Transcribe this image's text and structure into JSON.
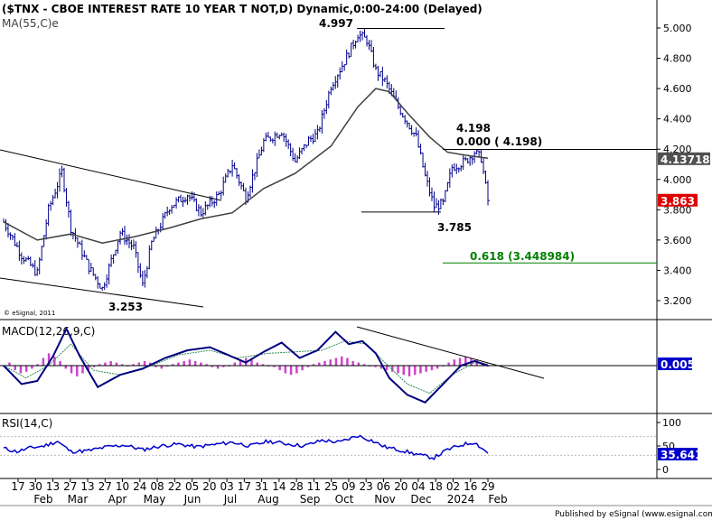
{
  "chart_data": [
    {
      "type": "ohlc-bar",
      "panel": "price",
      "title": "($TNX - CBOE INTEREST RATE 10 YEAR T NOT,D) Dynamic,0:00-24:00 (Delayed)",
      "indicator_label": "MA(55,C)e",
      "watermark": "© eSignal, 2011",
      "ylim": [
        3.1,
        5.1
      ],
      "yticks": [
        "5.000",
        "4.800",
        "4.600",
        "4.400",
        "4.200",
        "4.000",
        "3.800",
        "3.600",
        "3.400",
        "3.200"
      ],
      "last_price_label": "4.137182",
      "current_price_label": "3.863",
      "last_price": 4.137,
      "current_price": 3.863,
      "annotations": [
        {
          "text": "4.997",
          "value": 4.997
        },
        {
          "text": "3.253",
          "value": 3.253
        },
        {
          "text": "4.198",
          "value": 4.198
        },
        {
          "text": "0.000 ( 4.198)",
          "value": 4.198
        },
        {
          "text": "3.785",
          "value": 3.785
        },
        {
          "text": "0.618 (3.448984)",
          "value": 3.449
        }
      ],
      "price_path": [
        [
          0,
          3.72
        ],
        [
          8,
          3.5
        ],
        [
          15,
          3.38
        ],
        [
          20,
          3.8
        ],
        [
          26,
          4.05
        ],
        [
          30,
          3.68
        ],
        [
          38,
          3.42
        ],
        [
          44,
          3.28
        ],
        [
          52,
          3.65
        ],
        [
          58,
          3.55
        ],
        [
          62,
          3.3
        ],
        [
          66,
          3.58
        ],
        [
          74,
          3.82
        ],
        [
          82,
          3.9
        ],
        [
          88,
          3.78
        ],
        [
          96,
          3.9
        ],
        [
          102,
          4.1
        ],
        [
          108,
          3.88
        ],
        [
          116,
          4.25
        ],
        [
          124,
          4.32
        ],
        [
          130,
          4.12
        ],
        [
          136,
          4.26
        ],
        [
          140,
          4.3
        ],
        [
          146,
          4.62
        ],
        [
          152,
          4.78
        ],
        [
          158,
          4.96
        ],
        [
          162,
          4.92
        ],
        [
          166,
          4.72
        ],
        [
          170,
          4.65
        ],
        [
          176,
          4.48
        ],
        [
          184,
          4.28
        ],
        [
          188,
          4.02
        ],
        [
          192,
          3.82
        ],
        [
          196,
          3.84
        ],
        [
          200,
          4.08
        ],
        [
          206,
          4.12
        ],
        [
          210,
          4.18
        ],
        [
          213,
          4.14
        ],
        [
          216,
          3.86
        ]
      ],
      "ma_path": [
        [
          0,
          3.72
        ],
        [
          15,
          3.6
        ],
        [
          30,
          3.64
        ],
        [
          44,
          3.58
        ],
        [
          58,
          3.62
        ],
        [
          74,
          3.68
        ],
        [
          88,
          3.74
        ],
        [
          102,
          3.78
        ],
        [
          116,
          3.94
        ],
        [
          130,
          4.04
        ],
        [
          146,
          4.22
        ],
        [
          158,
          4.48
        ],
        [
          166,
          4.6
        ],
        [
          172,
          4.58
        ],
        [
          180,
          4.44
        ],
        [
          190,
          4.28
        ],
        [
          198,
          4.18
        ],
        [
          206,
          4.16
        ],
        [
          216,
          4.14
        ]
      ]
    },
    {
      "type": "line",
      "panel": "macd",
      "indicator_label": "MACD(12,26,9,C)",
      "value_label": "0.005",
      "value": 0.005,
      "ylim": [
        -0.3,
        0.3
      ],
      "series": [
        {
          "values": [
            [
              0,
              0.0
            ],
            [
              8,
              -0.12
            ],
            [
              15,
              -0.1
            ],
            [
              22,
              0.06
            ],
            [
              28,
              0.24
            ],
            [
              34,
              0.06
            ],
            [
              42,
              -0.14
            ],
            [
              52,
              -0.06
            ],
            [
              62,
              -0.02
            ],
            [
              72,
              0.05
            ],
            [
              82,
              0.1
            ],
            [
              92,
              0.12
            ],
            [
              100,
              0.07
            ],
            [
              108,
              0.02
            ],
            [
              116,
              0.09
            ],
            [
              124,
              0.15
            ],
            [
              132,
              0.05
            ],
            [
              140,
              0.1
            ],
            [
              148,
              0.22
            ],
            [
              154,
              0.14
            ],
            [
              160,
              0.16
            ],
            [
              166,
              0.08
            ],
            [
              172,
              -0.08
            ],
            [
              180,
              -0.19
            ],
            [
              188,
              -0.24
            ],
            [
              196,
              -0.12
            ],
            [
              204,
              0.0
            ],
            [
              210,
              0.03
            ],
            [
              216,
              0.0
            ]
          ]
        },
        {
          "values": [
            [
              0,
              0.0
            ],
            [
              10,
              -0.08
            ],
            [
              20,
              0.0
            ],
            [
              30,
              0.14
            ],
            [
              40,
              -0.03
            ],
            [
              52,
              -0.06
            ],
            [
              64,
              -0.01
            ],
            [
              78,
              0.07
            ],
            [
              92,
              0.1
            ],
            [
              104,
              0.05
            ],
            [
              118,
              0.08
            ],
            [
              130,
              0.09
            ],
            [
              142,
              0.1
            ],
            [
              152,
              0.16
            ],
            [
              162,
              0.14
            ],
            [
              170,
              0.02
            ],
            [
              180,
              -0.12
            ],
            [
              190,
              -0.18
            ],
            [
              200,
              -0.06
            ],
            [
              210,
              0.02
            ],
            [
              216,
              0.01
            ]
          ]
        }
      ],
      "histogram": [
        0.0,
        0.02,
        -0.03,
        -0.05,
        -0.04,
        -0.02,
        0.01,
        0.05,
        0.08,
        0.06,
        0.03,
        -0.02,
        -0.05,
        -0.07,
        -0.05,
        -0.03,
        -0.01,
        0.01,
        0.02,
        0.03,
        0.02,
        0.01,
        0.0,
        0.01,
        0.02,
        0.03,
        0.02,
        -0.01,
        -0.02,
        0.0,
        0.01,
        0.02,
        0.03,
        0.04,
        0.03,
        0.02,
        0.01,
        -0.01,
        -0.02,
        -0.01,
        0.0,
        0.02,
        0.04,
        0.05,
        0.04,
        0.02,
        0.01,
        0.0,
        -0.01,
        -0.03,
        -0.05,
        -0.06,
        -0.05,
        -0.03,
        -0.01,
        0.01,
        0.02,
        0.03,
        0.04,
        0.05,
        0.06,
        0.05,
        0.03,
        0.02,
        0.01,
        0.0,
        -0.01,
        -0.02,
        -0.03,
        -0.04,
        -0.05,
        -0.06,
        -0.07,
        -0.06,
        -0.05,
        -0.04,
        -0.03,
        -0.02,
        0.0,
        0.02,
        0.04,
        0.05,
        0.06,
        0.05,
        0.04,
        0.02,
        0.0
      ]
    },
    {
      "type": "line",
      "panel": "rsi",
      "indicator_label": "RSI(14,C)",
      "value_label": "35.641",
      "value": 35.641,
      "ylim": [
        0,
        100
      ],
      "yticks": [
        "100",
        "50",
        "0"
      ],
      "series": [
        {
          "values": [
            [
              0,
              45
            ],
            [
              6,
              38
            ],
            [
              12,
              46
            ],
            [
              18,
              50
            ],
            [
              24,
              60
            ],
            [
              30,
              38
            ],
            [
              38,
              40
            ],
            [
              46,
              48
            ],
            [
              54,
              52
            ],
            [
              62,
              42
            ],
            [
              70,
              50
            ],
            [
              78,
              54
            ],
            [
              86,
              48
            ],
            [
              94,
              53
            ],
            [
              102,
              58
            ],
            [
              110,
              50
            ],
            [
              118,
              60
            ],
            [
              126,
              55
            ],
            [
              134,
              50
            ],
            [
              142,
              62
            ],
            [
              150,
              58
            ],
            [
              158,
              72
            ],
            [
              164,
              62
            ],
            [
              170,
              48
            ],
            [
              178,
              40
            ],
            [
              186,
              30
            ],
            [
              192,
              25
            ],
            [
              198,
              42
            ],
            [
              204,
              52
            ],
            [
              210,
              58
            ],
            [
              216,
              35
            ]
          ]
        }
      ]
    },
    {
      "type": "axis",
      "panel": "time",
      "day_ticks": [
        "17",
        "30",
        "13",
        "27",
        "13",
        "27",
        "10",
        "24",
        "08",
        "22",
        "05",
        "20",
        "03",
        "17",
        "31",
        "14",
        "28",
        "11",
        "25",
        "09",
        "23",
        "06",
        "20",
        "04",
        "18",
        "02",
        "16",
        "29"
      ],
      "month_ticks": [
        "Feb",
        "Mar",
        "Apr",
        "May",
        "Jun",
        "Jul",
        "Aug",
        "Sep",
        "Oct",
        "Nov",
        "Dec",
        "2024",
        "Feb"
      ],
      "footer": "Published by eSignal (www.esignal.com)"
    }
  ],
  "colors": {
    "price_bars": "#00008b",
    "ma": "#404040",
    "retracement": "#008000",
    "current_price_bg": "#e00000",
    "last_price_bg": "#505050",
    "macd_line": "#000080",
    "macd_signal": "#2e8b57",
    "macd_histogram": "#cc44cc",
    "rsi_line": "#0000cc",
    "macd_value_bg": "#0000cc",
    "rsi_value_bg": "#0000cc"
  }
}
